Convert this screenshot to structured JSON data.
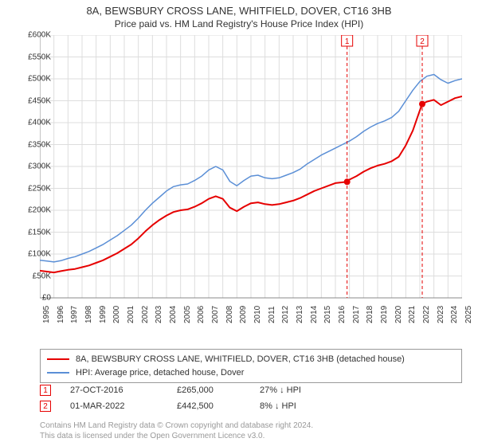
{
  "title": "8A, BEWSBURY CROSS LANE, WHITFIELD, DOVER, CT16 3HB",
  "subtitle": "Price paid vs. HM Land Registry's House Price Index (HPI)",
  "chart": {
    "type": "line",
    "plot_bg": "#ffffff",
    "grid_color": "#dddddd",
    "axis_color": "#888888",
    "ylim": [
      0,
      600000
    ],
    "ytick_step": 50000,
    "ylabels": [
      "£0",
      "£50K",
      "£100K",
      "£150K",
      "£200K",
      "£250K",
      "£300K",
      "£350K",
      "£400K",
      "£450K",
      "£500K",
      "£550K",
      "£600K"
    ],
    "x_years": [
      1995,
      1996,
      1997,
      1998,
      1999,
      2000,
      2001,
      2002,
      2003,
      2004,
      2005,
      2006,
      2007,
      2008,
      2009,
      2010,
      2011,
      2012,
      2013,
      2014,
      2015,
      2016,
      2017,
      2018,
      2019,
      2020,
      2021,
      2022,
      2023,
      2024,
      2025
    ],
    "series": [
      {
        "name": "8A, BEWSBURY CROSS LANE, WHITFIELD, DOVER, CT16 3HB (detached house)",
        "color": "#e60000",
        "width": 2,
        "data": [
          [
            1995,
            62000
          ],
          [
            1995.5,
            60000
          ],
          [
            1996,
            58000
          ],
          [
            1996.5,
            61000
          ],
          [
            1997,
            64000
          ],
          [
            1997.5,
            66000
          ],
          [
            1998,
            70000
          ],
          [
            1998.5,
            74000
          ],
          [
            1999,
            80000
          ],
          [
            1999.5,
            86000
          ],
          [
            2000,
            94000
          ],
          [
            2000.5,
            102000
          ],
          [
            2001,
            112000
          ],
          [
            2001.5,
            122000
          ],
          [
            2002,
            136000
          ],
          [
            2002.5,
            152000
          ],
          [
            2003,
            166000
          ],
          [
            2003.5,
            178000
          ],
          [
            2004,
            188000
          ],
          [
            2004.5,
            196000
          ],
          [
            2005,
            200000
          ],
          [
            2005.5,
            202000
          ],
          [
            2006,
            208000
          ],
          [
            2006.5,
            216000
          ],
          [
            2007,
            226000
          ],
          [
            2007.5,
            232000
          ],
          [
            2008,
            226000
          ],
          [
            2008.5,
            206000
          ],
          [
            2009,
            198000
          ],
          [
            2009.5,
            208000
          ],
          [
            2010,
            216000
          ],
          [
            2010.5,
            218000
          ],
          [
            2011,
            214000
          ],
          [
            2011.5,
            212000
          ],
          [
            2012,
            214000
          ],
          [
            2012.5,
            218000
          ],
          [
            2013,
            222000
          ],
          [
            2013.5,
            228000
          ],
          [
            2014,
            236000
          ],
          [
            2014.5,
            244000
          ],
          [
            2015,
            250000
          ],
          [
            2015.5,
            256000
          ],
          [
            2016,
            262000
          ],
          [
            2016.83,
            265000
          ],
          [
            2017,
            270000
          ],
          [
            2017.5,
            278000
          ],
          [
            2018,
            288000
          ],
          [
            2018.5,
            296000
          ],
          [
            2019,
            302000
          ],
          [
            2019.5,
            306000
          ],
          [
            2020,
            312000
          ],
          [
            2020.5,
            322000
          ],
          [
            2021,
            348000
          ],
          [
            2021.5,
            382000
          ],
          [
            2022,
            428000
          ],
          [
            2022.17,
            442500
          ],
          [
            2022.5,
            448000
          ],
          [
            2023,
            452000
          ],
          [
            2023.5,
            440000
          ],
          [
            2024,
            448000
          ],
          [
            2024.5,
            456000
          ],
          [
            2025,
            460000
          ]
        ]
      },
      {
        "name": "HPI: Average price, detached house, Dover",
        "color": "#5b8fd6",
        "width": 1.5,
        "data": [
          [
            1995,
            86000
          ],
          [
            1995.5,
            84000
          ],
          [
            1996,
            82000
          ],
          [
            1996.5,
            85000
          ],
          [
            1997,
            90000
          ],
          [
            1997.5,
            94000
          ],
          [
            1998,
            100000
          ],
          [
            1998.5,
            106000
          ],
          [
            1999,
            114000
          ],
          [
            1999.5,
            122000
          ],
          [
            2000,
            132000
          ],
          [
            2000.5,
            142000
          ],
          [
            2001,
            154000
          ],
          [
            2001.5,
            166000
          ],
          [
            2002,
            182000
          ],
          [
            2002.5,
            200000
          ],
          [
            2003,
            216000
          ],
          [
            2003.5,
            230000
          ],
          [
            2004,
            244000
          ],
          [
            2004.5,
            254000
          ],
          [
            2005,
            258000
          ],
          [
            2005.5,
            260000
          ],
          [
            2006,
            268000
          ],
          [
            2006.5,
            278000
          ],
          [
            2007,
            292000
          ],
          [
            2007.5,
            300000
          ],
          [
            2008,
            292000
          ],
          [
            2008.5,
            266000
          ],
          [
            2009,
            256000
          ],
          [
            2009.5,
            268000
          ],
          [
            2010,
            278000
          ],
          [
            2010.5,
            280000
          ],
          [
            2011,
            274000
          ],
          [
            2011.5,
            272000
          ],
          [
            2012,
            274000
          ],
          [
            2012.5,
            280000
          ],
          [
            2013,
            286000
          ],
          [
            2013.5,
            294000
          ],
          [
            2014,
            306000
          ],
          [
            2014.5,
            316000
          ],
          [
            2015,
            326000
          ],
          [
            2015.5,
            334000
          ],
          [
            2016,
            342000
          ],
          [
            2016.5,
            350000
          ],
          [
            2017,
            358000
          ],
          [
            2017.5,
            368000
          ],
          [
            2018,
            380000
          ],
          [
            2018.5,
            390000
          ],
          [
            2019,
            398000
          ],
          [
            2019.5,
            404000
          ],
          [
            2020,
            412000
          ],
          [
            2020.5,
            426000
          ],
          [
            2021,
            450000
          ],
          [
            2021.5,
            474000
          ],
          [
            2022,
            494000
          ],
          [
            2022.5,
            506000
          ],
          [
            2023,
            510000
          ],
          [
            2023.5,
            498000
          ],
          [
            2024,
            490000
          ],
          [
            2024.5,
            496000
          ],
          [
            2025,
            500000
          ]
        ]
      }
    ],
    "markers": [
      {
        "label": "1",
        "x": 2016.83,
        "y": 265000,
        "color": "#e60000"
      },
      {
        "label": "2",
        "x": 2022.17,
        "y": 442500,
        "color": "#e60000"
      }
    ]
  },
  "legend": {
    "items": [
      {
        "color": "#e60000",
        "label": "8A, BEWSBURY CROSS LANE, WHITFIELD, DOVER, CT16 3HB (detached house)"
      },
      {
        "color": "#5b8fd6",
        "label": "HPI: Average price, detached house, Dover"
      }
    ]
  },
  "sales": [
    {
      "n": "1",
      "date": "27-OCT-2016",
      "price": "£265,000",
      "delta": "27% ↓ HPI",
      "color": "#e60000"
    },
    {
      "n": "2",
      "date": "01-MAR-2022",
      "price": "£442,500",
      "delta": "8% ↓ HPI",
      "color": "#e60000"
    }
  ],
  "footnote_l1": "Contains HM Land Registry data © Crown copyright and database right 2024.",
  "footnote_l2": "This data is licensed under the Open Government Licence v3.0."
}
